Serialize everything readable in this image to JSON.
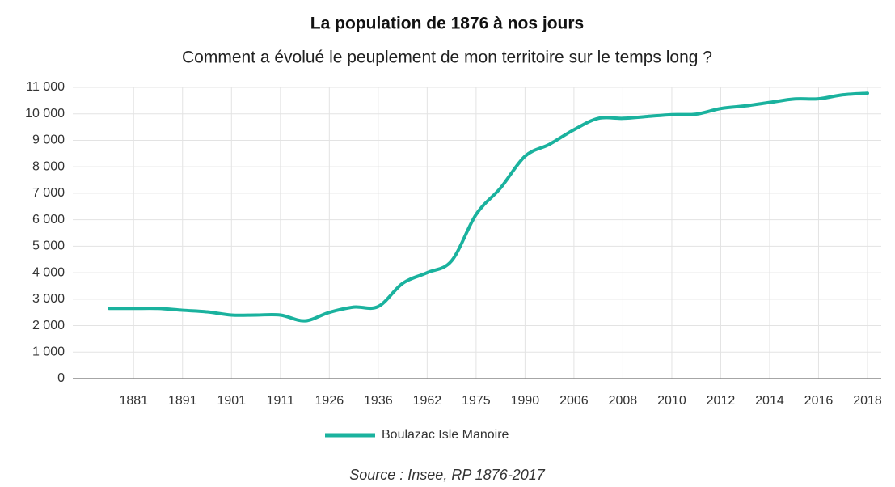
{
  "chart_data": {
    "type": "line",
    "title": "La population de 1876 à nos jours",
    "subtitle": "Comment a évolué le peuplement de mon territoire sur le temps long ?",
    "source": "Source : Insee, RP 1876-2017",
    "categories": [
      null,
      "1881",
      null,
      "1891",
      null,
      "1901",
      null,
      "1911",
      null,
      "1926",
      null,
      "1936",
      null,
      "1962",
      null,
      "1975",
      null,
      "1990",
      null,
      "2006",
      null,
      "2008",
      null,
      "2010",
      null,
      "2012",
      null,
      "2014",
      null,
      "2016",
      null,
      "2018"
    ],
    "series": [
      {
        "name": "Boulazac Isle Manoire",
        "color": "#1ab29e",
        "values": [
          2650,
          2650,
          2650,
          2580,
          2520,
          2400,
          2400,
          2400,
          2180,
          2500,
          2700,
          2720,
          3600,
          4000,
          4450,
          6200,
          7200,
          8400,
          8850,
          9400,
          9830,
          9830,
          9900,
          9970,
          9990,
          10200,
          10300,
          10430,
          10560,
          10570,
          10720,
          10780
        ]
      }
    ],
    "ylim": [
      0,
      11000
    ],
    "yticks": [
      0,
      {
        "value": 1000,
        "label": "1 000"
      },
      {
        "value": 2000,
        "label": "2 000"
      },
      {
        "value": 3000,
        "label": "3 000"
      },
      {
        "value": 4000,
        "label": "4 000"
      },
      {
        "value": 5000,
        "label": "5 000"
      },
      {
        "value": 6000,
        "label": "6 000"
      },
      {
        "value": 7000,
        "label": "7 000"
      },
      {
        "value": 8000,
        "label": "8 000"
      },
      {
        "value": 9000,
        "label": "9 000"
      },
      {
        "value": 10000,
        "label": "10 000"
      },
      {
        "value": 11000,
        "label": "11 000"
      }
    ],
    "grid": true
  }
}
